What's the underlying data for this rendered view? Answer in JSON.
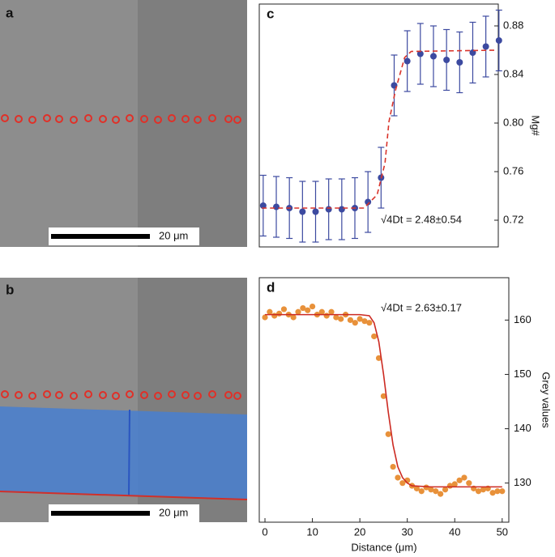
{
  "panels": {
    "a": {
      "label": "a",
      "scale_bar": "20 μm"
    },
    "b": {
      "label": "b",
      "scale_bar": "20 μm"
    }
  },
  "chart_data": [
    {
      "type": "scatter",
      "label": "c",
      "ylabel": "Mg#",
      "annotation": "√4Dt = 2.48±0.54",
      "x": [
        0,
        1,
        2,
        3,
        4,
        5,
        6,
        7,
        8,
        9,
        10,
        11,
        12,
        13,
        14,
        15,
        16,
        17,
        18
      ],
      "series": [
        {
          "color": "#3c4aa0",
          "values": [
            0.732,
            0.731,
            0.73,
            0.727,
            0.727,
            0.729,
            0.729,
            0.73,
            0.735,
            0.755,
            0.831,
            0.851,
            0.857,
            0.855,
            0.852,
            0.85,
            0.858,
            0.863,
            0.868
          ],
          "errors": [
            0.025,
            0.025,
            0.025,
            0.025,
            0.025,
            0.025,
            0.025,
            0.025,
            0.025,
            0.025,
            0.025,
            0.025,
            0.025,
            0.025,
            0.025,
            0.025,
            0.025,
            0.025,
            0.025
          ]
        },
        {
          "color": "#d9342b",
          "dashed": true,
          "x": [
            -0.1,
            7.7,
            8.7,
            9.3,
            9.6,
            10.1,
            10.8,
            11.3,
            17.7
          ],
          "values": [
            0.73,
            0.73,
            0.741,
            0.767,
            0.801,
            0.827,
            0.854,
            0.859,
            0.86
          ]
        }
      ],
      "xlim": [
        -0.3,
        17.95
      ],
      "ylim": [
        0.698,
        0.898
      ],
      "yticks": [
        0.72,
        0.76,
        {
          "value": 0.8,
          "label": "0.80"
        },
        0.84,
        0.88
      ]
    },
    {
      "type": "scatter",
      "label": "d",
      "xlabel": "Distance (μm)",
      "ylabel": "Grey values",
      "annotation": "√4Dt = 2.63±0.17",
      "x": [
        0,
        1,
        2,
        3,
        4,
        5,
        6,
        7,
        8,
        9,
        10,
        11,
        12,
        13,
        14,
        15,
        16,
        17,
        18,
        19,
        20,
        21,
        22,
        23,
        24,
        25,
        26,
        27,
        28,
        29,
        30,
        31,
        32,
        33,
        34,
        35,
        36,
        37,
        38,
        39,
        40,
        41,
        42,
        43,
        44,
        45,
        46,
        47,
        48,
        49,
        50
      ],
      "series": [
        {
          "color": "#e8913a",
          "values": [
            160.5,
            161.5,
            160.8,
            161.2,
            162,
            161,
            160.5,
            161.5,
            162.2,
            161.8,
            162.5,
            161,
            161.5,
            160.8,
            161.5,
            160.5,
            160.2,
            161,
            160,
            159.5,
            160.2,
            159.8,
            159.5,
            157,
            153,
            146,
            139,
            133,
            131,
            130,
            130.5,
            129.5,
            129,
            128.5,
            129.2,
            128.8,
            128.5,
            128,
            128.8,
            129.5,
            129.8,
            130.5,
            131,
            130,
            129,
            128.5,
            128.8,
            129,
            128.2,
            128.5,
            128.5
          ]
        },
        {
          "color": "#cc2a22",
          "dashed": false,
          "x": [
            0,
            20,
            22,
            23,
            24,
            25,
            26,
            27,
            28,
            29,
            30,
            31,
            35,
            50
          ],
          "values": [
            161,
            161,
            160.8,
            159.5,
            156,
            150,
            143,
            137,
            133,
            131,
            130,
            129.5,
            129.3,
            129.3
          ]
        }
      ],
      "xlim": [
        -1.2,
        51.4
      ],
      "ylim": [
        122.8,
        167.8
      ],
      "xticks": [
        0,
        10,
        20,
        30,
        40,
        50
      ],
      "yticks": [
        130,
        140,
        150,
        160
      ]
    }
  ]
}
